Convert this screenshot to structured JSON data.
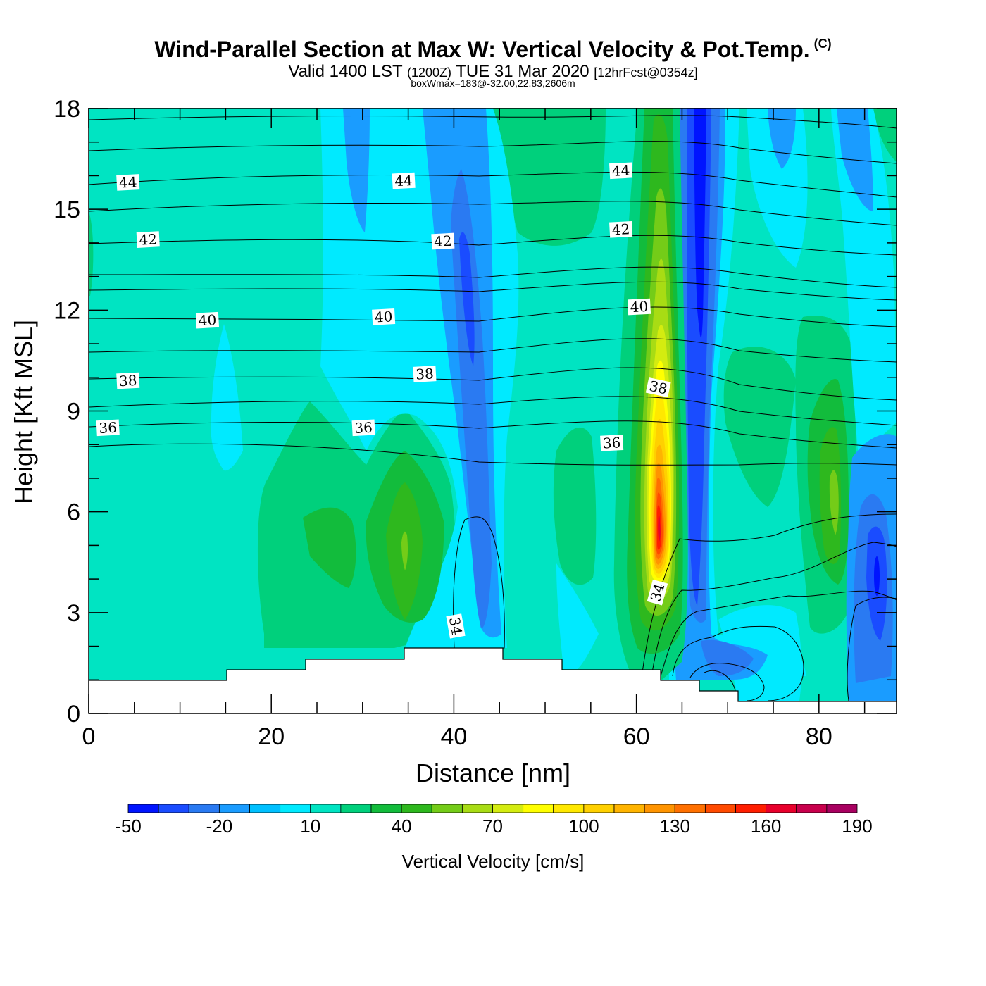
{
  "header": {
    "title": "Wind-Parallel Section at Max W: Vertical Velocity & Pot.Temp.",
    "copyright": "(C)",
    "valid_prefix": "Valid 1400 LST",
    "valid_utc": "(1200Z)",
    "valid_date": "TUE 31 Mar 2020",
    "forecast": "[12hrFcst@0354z]",
    "box_info": "boxWmax=183@-32.00,22.83,2606m"
  },
  "chart_data": {
    "type": "heatmap",
    "title": "Wind-Parallel Section at Max W: Vertical Velocity & Pot.Temp.",
    "xlabel": "Distance [nm]",
    "ylabel": "Height [Kft MSL]",
    "xlim": [
      0,
      88.5
    ],
    "ylim": [
      0,
      18
    ],
    "x_ticks": [
      0,
      20,
      40,
      60,
      80
    ],
    "y_ticks": [
      0,
      3,
      6,
      9,
      12,
      15,
      18
    ],
    "colorbar": {
      "title": "Vertical Velocity [cm/s]",
      "levels": [
        -50,
        -40,
        -30,
        -20,
        -10,
        0,
        10,
        20,
        30,
        40,
        50,
        60,
        70,
        80,
        90,
        100,
        110,
        120,
        130,
        140,
        150,
        160,
        170,
        180,
        190
      ],
      "labels": [
        -50,
        -20,
        10,
        40,
        70,
        100,
        130,
        160,
        190
      ],
      "colors": [
        "#0014ff",
        "#1a4cff",
        "#2a7af2",
        "#1a9cff",
        "#00c0ff",
        "#00eaff",
        "#00e4c2",
        "#00d07c",
        "#12bc3c",
        "#2eb81e",
        "#74cc18",
        "#a8dc14",
        "#d4ec10",
        "#ffff00",
        "#ffe800",
        "#ffd000",
        "#ffb400",
        "#ff9400",
        "#ff7000",
        "#ff4a00",
        "#ff1e00",
        "#e8002c",
        "#c8004c",
        "#a80060"
      ]
    },
    "vertical_velocity_features": [
      {
        "name": "main-updraft",
        "x": 62.5,
        "height_kft": 5.5,
        "w_max_cm_s": 183
      },
      {
        "name": "downdraft-67nm",
        "x": 67.2,
        "height_kft": 15,
        "w_min_cm_s": -50
      },
      {
        "name": "downdraft-42nm",
        "x": 42,
        "height_kft": 12,
        "w_min_cm_s": -30
      },
      {
        "name": "downdraft-87nm",
        "x": 86.5,
        "height_kft": 4,
        "w_min_cm_s": -40
      },
      {
        "name": "updraft-35nm",
        "x": 34.5,
        "height_kft": 5,
        "w_max_cm_s": 45
      },
      {
        "name": "updraft-82nm",
        "x": 81.5,
        "height_kft": 6,
        "w_max_cm_s": 45
      }
    ],
    "pot_temp_contour_labels": [
      {
        "value": "44",
        "x": 4.3,
        "y": 15.8
      },
      {
        "value": "44",
        "x": 34.5,
        "y": 15.85
      },
      {
        "value": "44",
        "x": 58.3,
        "y": 16.15
      },
      {
        "value": "42",
        "x": 6.5,
        "y": 14.1
      },
      {
        "value": "42",
        "x": 38.8,
        "y": 14.05
      },
      {
        "value": "42",
        "x": 58.3,
        "y": 14.4
      },
      {
        "value": "40",
        "x": 13.0,
        "y": 11.7
      },
      {
        "value": "40",
        "x": 32.3,
        "y": 11.8
      },
      {
        "value": "40",
        "x": 60.3,
        "y": 12.1
      },
      {
        "value": "38",
        "x": 4.3,
        "y": 9.9
      },
      {
        "value": "38",
        "x": 36.8,
        "y": 10.1
      },
      {
        "value": "38",
        "x": 62.4,
        "y": 9.7
      },
      {
        "value": "36",
        "x": 2.1,
        "y": 8.5
      },
      {
        "value": "36",
        "x": 30.1,
        "y": 8.5
      },
      {
        "value": "36",
        "x": 57.3,
        "y": 8.05
      },
      {
        "value": "34",
        "x": 40.2,
        "y": 2.6
      },
      {
        "value": "34",
        "x": 62.3,
        "y": 3.6
      }
    ],
    "terrain_kft": [
      {
        "x0": 0,
        "x1": 15,
        "h": 1.0
      },
      {
        "x0": 15,
        "x1": 23.8,
        "h": 1.3
      },
      {
        "x0": 23.8,
        "x1": 34.6,
        "h": 1.6
      },
      {
        "x0": 34.6,
        "x1": 45.4,
        "h": 1.95
      },
      {
        "x0": 45.4,
        "x1": 52,
        "h": 1.6
      },
      {
        "x0": 52,
        "x1": 62.8,
        "h": 1.3
      },
      {
        "x0": 62.8,
        "x1": 65.8,
        "h": 1.0
      },
      {
        "x0": 65.8,
        "x1": 71.2,
        "h": 0.65
      },
      {
        "x0": 71.2,
        "x1": 88.5,
        "h": 0.35
      }
    ]
  }
}
